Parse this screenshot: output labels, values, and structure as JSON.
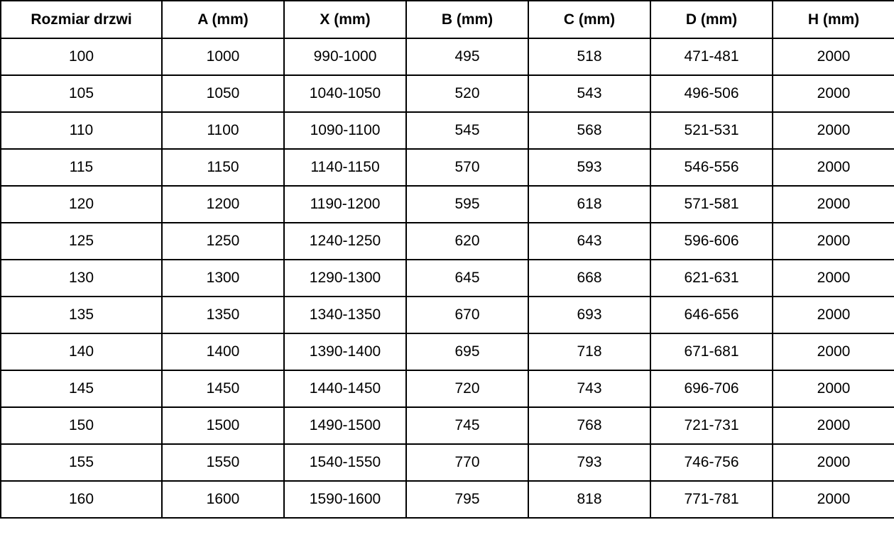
{
  "table": {
    "headers": [
      "Rozmiar drzwi",
      "A (mm)",
      "X (mm)",
      "B (mm)",
      "C (mm)",
      "D (mm)",
      "H (mm)"
    ],
    "rows": [
      [
        "100",
        "1000",
        "990-1000",
        "495",
        "518",
        "471-481",
        "2000"
      ],
      [
        "105",
        "1050",
        "1040-1050",
        "520",
        "543",
        "496-506",
        "2000"
      ],
      [
        "110",
        "1100",
        "1090-1100",
        "545",
        "568",
        "521-531",
        "2000"
      ],
      [
        "115",
        "1150",
        "1140-1150",
        "570",
        "593",
        "546-556",
        "2000"
      ],
      [
        "120",
        "1200",
        "1190-1200",
        "595",
        "618",
        "571-581",
        "2000"
      ],
      [
        "125",
        "1250",
        "1240-1250",
        "620",
        "643",
        "596-606",
        "2000"
      ],
      [
        "130",
        "1300",
        "1290-1300",
        "645",
        "668",
        "621-631",
        "2000"
      ],
      [
        "135",
        "1350",
        "1340-1350",
        "670",
        "693",
        "646-656",
        "2000"
      ],
      [
        "140",
        "1400",
        "1390-1400",
        "695",
        "718",
        "671-681",
        "2000"
      ],
      [
        "145",
        "1450",
        "1440-1450",
        "720",
        "743",
        "696-706",
        "2000"
      ],
      [
        "150",
        "1500",
        "1490-1500",
        "745",
        "768",
        "721-731",
        "2000"
      ],
      [
        "155",
        "1550",
        "1540-1550",
        "770",
        "793",
        "746-756",
        "2000"
      ],
      [
        "160",
        "1600",
        "1590-1600",
        "795",
        "818",
        "771-781",
        "2000"
      ]
    ]
  }
}
